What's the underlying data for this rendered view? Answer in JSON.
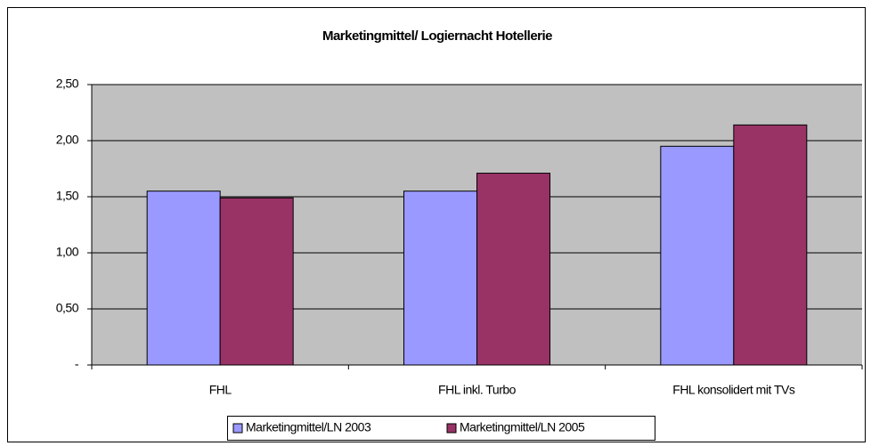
{
  "chart_data": {
    "type": "bar",
    "title": "Marketingmittel/ Logiernacht Hotellerie",
    "categories": [
      "FHL",
      "FHL inkl. Turbo",
      "FHL konsolidert mit TVs"
    ],
    "series": [
      {
        "name": "Marketingmittel/LN 2003",
        "color": "#9999ff",
        "values": [
          1.55,
          1.55,
          1.95
        ]
      },
      {
        "name": "Marketingmittel/LN 2005",
        "color": "#993366",
        "values": [
          1.49,
          1.71,
          2.14
        ]
      }
    ],
    "ylim": [
      0,
      2.5
    ],
    "yticks": [
      {
        "value": 0,
        "label": "-"
      },
      {
        "value": 0.5,
        "label": "0,50"
      },
      {
        "value": 1,
        "label": "1,00"
      },
      {
        "value": 1.5,
        "label": "1,50"
      },
      {
        "value": 2,
        "label": "2,00"
      },
      {
        "value": 2.5,
        "label": "2,50"
      }
    ],
    "grid": true,
    "plot_background": "#c0c0c0",
    "legend": "bottom"
  }
}
